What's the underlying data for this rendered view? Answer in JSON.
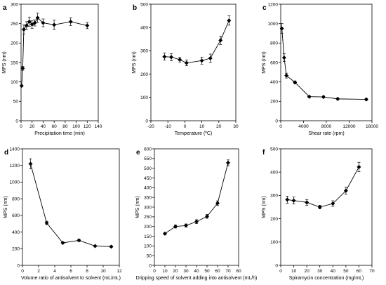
{
  "chart_data": [
    {
      "panel": "a",
      "type": "scatter",
      "xlabel": "Precipitation time (min)",
      "ylabel": "MPS (nm)",
      "xlim": [
        0,
        140
      ],
      "ylim": [
        0,
        300
      ],
      "xticks": [
        0,
        20,
        40,
        60,
        80,
        100,
        120,
        140
      ],
      "yticks": [
        0,
        50,
        100,
        150,
        200,
        250,
        300
      ],
      "x": [
        1,
        3,
        5,
        10,
        15,
        20,
        25,
        30,
        40,
        60,
        90,
        120
      ],
      "y": [
        90,
        135,
        235,
        245,
        255,
        248,
        252,
        265,
        252,
        247,
        255,
        245
      ],
      "err": [
        0,
        5,
        12,
        10,
        12,
        10,
        8,
        12,
        10,
        12,
        10,
        8
      ]
    },
    {
      "panel": "b",
      "type": "scatter",
      "xlabel": "Temperature (ºC)",
      "ylabel": "MPS (nm)",
      "xlim": [
        -20,
        30
      ],
      "ylim": [
        0,
        500
      ],
      "xticks": [
        -20,
        -10,
        0,
        10,
        20,
        30
      ],
      "yticks": [
        0,
        100,
        200,
        300,
        400,
        500
      ],
      "x": [
        -12,
        -8,
        -3,
        1,
        10,
        15,
        21,
        26
      ],
      "y": [
        275,
        273,
        262,
        248,
        258,
        268,
        345,
        430
      ],
      "err": [
        15,
        15,
        10,
        12,
        15,
        18,
        18,
        20
      ]
    },
    {
      "panel": "c",
      "type": "scatter",
      "xlabel": "Shear rate (rpm)",
      "ylabel": "MPS (nm)",
      "xlim": [
        0,
        16000
      ],
      "ylim": [
        0,
        1200
      ],
      "xticks": [
        0,
        4000,
        8000,
        12000,
        16000
      ],
      "yticks": [
        0,
        200,
        400,
        600,
        800,
        1000,
        1200
      ],
      "x": [
        200,
        600,
        1000,
        2500,
        5000,
        7500,
        10000,
        15000
      ],
      "y": [
        950,
        650,
        465,
        395,
        248,
        245,
        225,
        220
      ],
      "err": [
        50,
        40,
        25,
        15,
        10,
        10,
        10,
        10
      ]
    },
    {
      "panel": "d",
      "type": "scatter",
      "xlabel": "Volume ratio of antisolvent to solvent (mL/mL)",
      "ylabel": "MPS (nm)",
      "xlim": [
        0,
        12
      ],
      "ylim": [
        0,
        1400
      ],
      "xticks": [
        0,
        2,
        4,
        6,
        8,
        10,
        12
      ],
      "yticks": [
        0,
        200,
        400,
        600,
        800,
        1000,
        1200,
        1400
      ],
      "x": [
        1,
        3,
        5,
        7,
        9,
        11
      ],
      "y": [
        1220,
        510,
        270,
        300,
        232,
        225
      ],
      "err": [
        60,
        20,
        10,
        12,
        10,
        10
      ]
    },
    {
      "panel": "e",
      "type": "scatter",
      "xlabel": "Dripping speed of solvent adding into antisolvent (mL/h)",
      "ylabel": "MPS (nm)",
      "xlim": [
        0,
        80
      ],
      "ylim": [
        0,
        600
      ],
      "xticks": [
        0,
        10,
        20,
        30,
        40,
        50,
        60,
        70,
        80
      ],
      "yticks": [
        0,
        50,
        100,
        150,
        200,
        250,
        300,
        350,
        400,
        450,
        500,
        550,
        600
      ],
      "x": [
        10,
        20,
        30,
        40,
        50,
        60,
        70
      ],
      "y": [
        163,
        200,
        205,
        225,
        252,
        320,
        528
      ],
      "err": [
        5,
        8,
        8,
        10,
        10,
        12,
        15
      ]
    },
    {
      "panel": "f",
      "type": "scatter",
      "xlabel": "Spiramycin concentration (mg/mL)",
      "ylabel": "MPS (nm)",
      "xlim": [
        0,
        70
      ],
      "ylim": [
        0,
        500
      ],
      "xticks": [
        0,
        10,
        20,
        30,
        40,
        50,
        60,
        70
      ],
      "yticks": [
        0,
        100,
        200,
        300,
        400,
        500
      ],
      "x": [
        5,
        10,
        20,
        30,
        40,
        50,
        60
      ],
      "y": [
        282,
        278,
        270,
        250,
        265,
        320,
        422
      ],
      "err": [
        15,
        15,
        12,
        8,
        12,
        15,
        20
      ]
    }
  ]
}
